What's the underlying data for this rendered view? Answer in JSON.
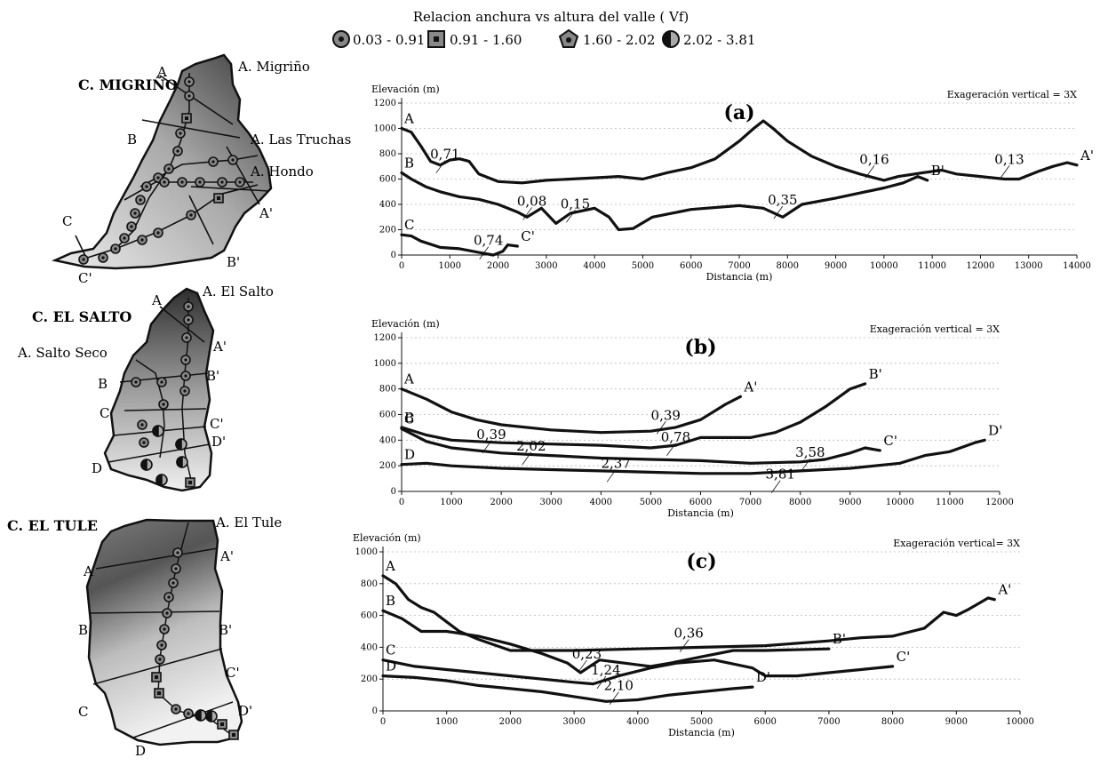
{
  "legend": {
    "title": "Relacion anchura vs altura del valle ( Vf)",
    "items": [
      {
        "symbol": "circle-dot-icon",
        "label": "0.03 - 0.91"
      },
      {
        "symbol": "square-dot-icon",
        "label": "0.91 - 1.60"
      },
      {
        "symbol": "pentagon-dot-icon",
        "label": "1.60 - 2.02"
      },
      {
        "symbol": "half-circle-icon",
        "label": "2.02 - 3.81"
      }
    ]
  },
  "basins": [
    {
      "name": "C. MIGRIÑO",
      "labels": [
        "A",
        "A. Migriño",
        "B",
        "A. Las Truchas",
        "A. Hondo",
        "A'",
        "C",
        "B'",
        "C'"
      ]
    },
    {
      "name": "C. EL SALTO",
      "labels": [
        "A",
        "A. El Salto",
        "A. Salto Seco",
        "A'",
        "B",
        "B'",
        "C",
        "C'",
        "D'",
        "D"
      ]
    },
    {
      "name": "C. EL TULE",
      "labels": [
        "A. El Tule",
        "A",
        "A'",
        "B",
        "B'",
        "C'",
        "C",
        "D'",
        "D"
      ]
    }
  ],
  "chart_data": [
    {
      "type": "line",
      "panel": "(a)",
      "ylabel": "Elevación (m)",
      "xlabel": "Distancia (m)",
      "note": "Exageración vertical = 3X",
      "xlim": [
        0,
        14000
      ],
      "ylim": [
        0,
        1200
      ],
      "xticks": [
        0,
        1000,
        2000,
        3000,
        4000,
        5000,
        6000,
        7000,
        8000,
        9000,
        10000,
        11000,
        12000,
        13000,
        14000
      ],
      "yticks": [
        0,
        200,
        400,
        600,
        800,
        1000,
        1200
      ],
      "series": [
        {
          "name": "A",
          "end_label": "A'",
          "points": [
            [
              0,
              1000
            ],
            [
              200,
              970
            ],
            [
              400,
              860
            ],
            [
              600,
              740
            ],
            [
              800,
              710
            ],
            [
              1000,
              750
            ],
            [
              1200,
              760
            ],
            [
              1400,
              740
            ],
            [
              1600,
              640
            ],
            [
              2000,
              580
            ],
            [
              2500,
              570
            ],
            [
              3000,
              590
            ],
            [
              3500,
              600
            ],
            [
              4000,
              610
            ],
            [
              4500,
              620
            ],
            [
              5000,
              600
            ],
            [
              5500,
              650
            ],
            [
              6000,
              690
            ],
            [
              6500,
              760
            ],
            [
              7000,
              900
            ],
            [
              7300,
              1000
            ],
            [
              7500,
              1060
            ],
            [
              7700,
              1000
            ],
            [
              8000,
              900
            ],
            [
              8500,
              780
            ],
            [
              9000,
              700
            ],
            [
              9500,
              640
            ],
            [
              10000,
              590
            ],
            [
              10300,
              620
            ],
            [
              10800,
              650
            ],
            [
              11200,
              670
            ],
            [
              11500,
              640
            ],
            [
              12000,
              620
            ],
            [
              12500,
              600
            ],
            [
              12800,
              600
            ],
            [
              13200,
              660
            ],
            [
              13500,
              700
            ],
            [
              13800,
              730
            ],
            [
              14000,
              710
            ]
          ]
        },
        {
          "name": "B",
          "end_label": "B'",
          "points": [
            [
              0,
              650
            ],
            [
              200,
              600
            ],
            [
              500,
              540
            ],
            [
              800,
              500
            ],
            [
              1200,
              460
            ],
            [
              1600,
              440
            ],
            [
              2000,
              400
            ],
            [
              2400,
              340
            ],
            [
              2600,
              300
            ],
            [
              2900,
              370
            ],
            [
              3200,
              250
            ],
            [
              3500,
              330
            ],
            [
              4000,
              370
            ],
            [
              4300,
              300
            ],
            [
              4500,
              200
            ],
            [
              4800,
              210
            ],
            [
              5200,
              300
            ],
            [
              6000,
              360
            ],
            [
              7000,
              390
            ],
            [
              7500,
              370
            ],
            [
              7900,
              300
            ],
            [
              8300,
              400
            ],
            [
              9000,
              450
            ],
            [
              9500,
              490
            ],
            [
              10000,
              530
            ],
            [
              10400,
              570
            ],
            [
              10700,
              620
            ],
            [
              10900,
              590
            ]
          ]
        },
        {
          "name": "C",
          "end_label": "C'",
          "points": [
            [
              0,
              160
            ],
            [
              200,
              150
            ],
            [
              400,
              110
            ],
            [
              800,
              60
            ],
            [
              1200,
              50
            ],
            [
              1600,
              20
            ],
            [
              1900,
              0
            ],
            [
              2100,
              30
            ],
            [
              2200,
              80
            ],
            [
              2400,
              70
            ]
          ]
        }
      ],
      "annotations": [
        {
          "text": "0,71",
          "x": 900,
          "y": 760
        },
        {
          "text": "0,08",
          "x": 2700,
          "y": 390
        },
        {
          "text": "0,15",
          "x": 3600,
          "y": 370
        },
        {
          "text": "0,35",
          "x": 7900,
          "y": 400
        },
        {
          "text": "0,16",
          "x": 9800,
          "y": 720
        },
        {
          "text": "0,13",
          "x": 12600,
          "y": 720
        },
        {
          "text": "0,74",
          "x": 1800,
          "y": 80
        }
      ]
    },
    {
      "type": "line",
      "panel": "(b)",
      "ylabel": "Elevación (m)",
      "xlabel": "Distancia (m)",
      "note": "Exageración vertical = 3X",
      "xlim": [
        0,
        12000
      ],
      "ylim": [
        0,
        1200
      ],
      "xticks": [
        0,
        1000,
        2000,
        3000,
        4000,
        5000,
        6000,
        7000,
        8000,
        9000,
        10000,
        11000,
        12000
      ],
      "yticks": [
        0,
        200,
        400,
        600,
        800,
        1000,
        1200
      ],
      "series": [
        {
          "name": "A",
          "end_label": "A'",
          "points": [
            [
              0,
              800
            ],
            [
              500,
              720
            ],
            [
              1000,
              620
            ],
            [
              1500,
              560
            ],
            [
              2000,
              520
            ],
            [
              3000,
              480
            ],
            [
              4000,
              460
            ],
            [
              5000,
              470
            ],
            [
              5500,
              500
            ],
            [
              6000,
              560
            ],
            [
              6500,
              680
            ],
            [
              6800,
              740
            ]
          ]
        },
        {
          "name": "B",
          "end_label": "B'",
          "points": [
            [
              0,
              500
            ],
            [
              500,
              440
            ],
            [
              1000,
              400
            ],
            [
              2000,
              380
            ],
            [
              3000,
              370
            ],
            [
              4000,
              360
            ],
            [
              5000,
              340
            ],
            [
              5500,
              360
            ],
            [
              6000,
              420
            ],
            [
              7000,
              420
            ],
            [
              7500,
              460
            ],
            [
              8000,
              540
            ],
            [
              8500,
              660
            ],
            [
              9000,
              800
            ],
            [
              9300,
              840
            ]
          ]
        },
        {
          "name": "C",
          "end_label": "C'",
          "points": [
            [
              0,
              490
            ],
            [
              500,
              390
            ],
            [
              1000,
              340
            ],
            [
              2000,
              300
            ],
            [
              3000,
              280
            ],
            [
              4000,
              260
            ],
            [
              5000,
              250
            ],
            [
              6000,
              240
            ],
            [
              7000,
              220
            ],
            [
              8000,
              230
            ],
            [
              8500,
              250
            ],
            [
              9000,
              300
            ],
            [
              9300,
              340
            ],
            [
              9600,
              320
            ]
          ]
        },
        {
          "name": "D",
          "end_label": "D'",
          "points": [
            [
              0,
              210
            ],
            [
              500,
              220
            ],
            [
              1000,
              200
            ],
            [
              2000,
              180
            ],
            [
              3000,
              170
            ],
            [
              4000,
              160
            ],
            [
              5000,
              150
            ],
            [
              6000,
              140
            ],
            [
              7000,
              140
            ],
            [
              8000,
              160
            ],
            [
              9000,
              180
            ],
            [
              10000,
              220
            ],
            [
              10500,
              280
            ],
            [
              11000,
              310
            ],
            [
              11500,
              380
            ],
            [
              11700,
              400
            ]
          ]
        }
      ],
      "annotations": [
        {
          "text": "0,39",
          "x": 5300,
          "y": 560
        },
        {
          "text": "0,39",
          "x": 1800,
          "y": 410
        },
        {
          "text": "0,78",
          "x": 5500,
          "y": 390
        },
        {
          "text": "2,02",
          "x": 2600,
          "y": 320
        },
        {
          "text": "3,58",
          "x": 8200,
          "y": 270
        },
        {
          "text": "2,37",
          "x": 4300,
          "y": 185
        },
        {
          "text": "3,81",
          "x": 7600,
          "y": 100
        }
      ]
    },
    {
      "type": "line",
      "panel": "(c)",
      "ylabel": "Elevación (m)",
      "xlabel": "Distancia (m)",
      "note": "Exageración vertical= 3X",
      "xlim": [
        0,
        10000
      ],
      "ylim": [
        0,
        1000
      ],
      "xticks": [
        0,
        1000,
        2000,
        3000,
        4000,
        5000,
        6000,
        7000,
        8000,
        9000,
        10000
      ],
      "yticks": [
        0,
        200,
        400,
        600,
        800,
        1000
      ],
      "series": [
        {
          "name": "A",
          "end_label": "A'",
          "points": [
            [
              0,
              850
            ],
            [
              200,
              800
            ],
            [
              400,
              700
            ],
            [
              600,
              650
            ],
            [
              800,
              620
            ],
            [
              1000,
              560
            ],
            [
              1200,
              500
            ],
            [
              1500,
              450
            ],
            [
              2000,
              380
            ],
            [
              3000,
              380
            ],
            [
              4000,
              390
            ],
            [
              5000,
              400
            ],
            [
              6000,
              410
            ],
            [
              7000,
              440
            ],
            [
              7500,
              460
            ],
            [
              8000,
              470
            ],
            [
              8500,
              520
            ],
            [
              8800,
              620
            ],
            [
              9000,
              600
            ],
            [
              9200,
              640
            ],
            [
              9500,
              710
            ],
            [
              9600,
              700
            ]
          ]
        },
        {
          "name": "B",
          "end_label": "B'",
          "points": [
            [
              0,
              630
            ],
            [
              300,
              580
            ],
            [
              600,
              500
            ],
            [
              1000,
              500
            ],
            [
              1500,
              470
            ],
            [
              2000,
              420
            ],
            [
              2500,
              360
            ],
            [
              2900,
              300
            ],
            [
              3100,
              240
            ],
            [
              3400,
              320
            ],
            [
              3800,
              300
            ],
            [
              4200,
              280
            ],
            [
              4500,
              300
            ],
            [
              5000,
              340
            ],
            [
              5500,
              380
            ],
            [
              6000,
              380
            ],
            [
              7000,
              390
            ]
          ]
        },
        {
          "name": "C",
          "end_label": "C'",
          "points": [
            [
              0,
              320
            ],
            [
              500,
              280
            ],
            [
              1000,
              260
            ],
            [
              1500,
              240
            ],
            [
              2000,
              220
            ],
            [
              2500,
              200
            ],
            [
              3000,
              180
            ],
            [
              3300,
              170
            ],
            [
              3700,
              220
            ],
            [
              4200,
              270
            ],
            [
              4600,
              300
            ],
            [
              5200,
              320
            ],
            [
              5800,
              270
            ],
            [
              6000,
              220
            ],
            [
              6500,
              220
            ],
            [
              7000,
              240
            ],
            [
              7500,
              260
            ],
            [
              8000,
              280
            ]
          ]
        },
        {
          "name": "D",
          "end_label": "D'",
          "points": [
            [
              0,
              220
            ],
            [
              500,
              210
            ],
            [
              1000,
              190
            ],
            [
              1500,
              160
            ],
            [
              2000,
              140
            ],
            [
              2500,
              120
            ],
            [
              3000,
              90
            ],
            [
              3500,
              60
            ],
            [
              4000,
              70
            ],
            [
              4500,
              100
            ],
            [
              5000,
              120
            ],
            [
              5500,
              140
            ],
            [
              5800,
              150
            ]
          ]
        }
      ],
      "annotations": [
        {
          "text": "0,36",
          "x": 4800,
          "y": 460
        },
        {
          "text": "0,23",
          "x": 3200,
          "y": 330
        },
        {
          "text": "1,24",
          "x": 3500,
          "y": 230
        },
        {
          "text": "2,10",
          "x": 3700,
          "y": 130
        }
      ]
    }
  ]
}
